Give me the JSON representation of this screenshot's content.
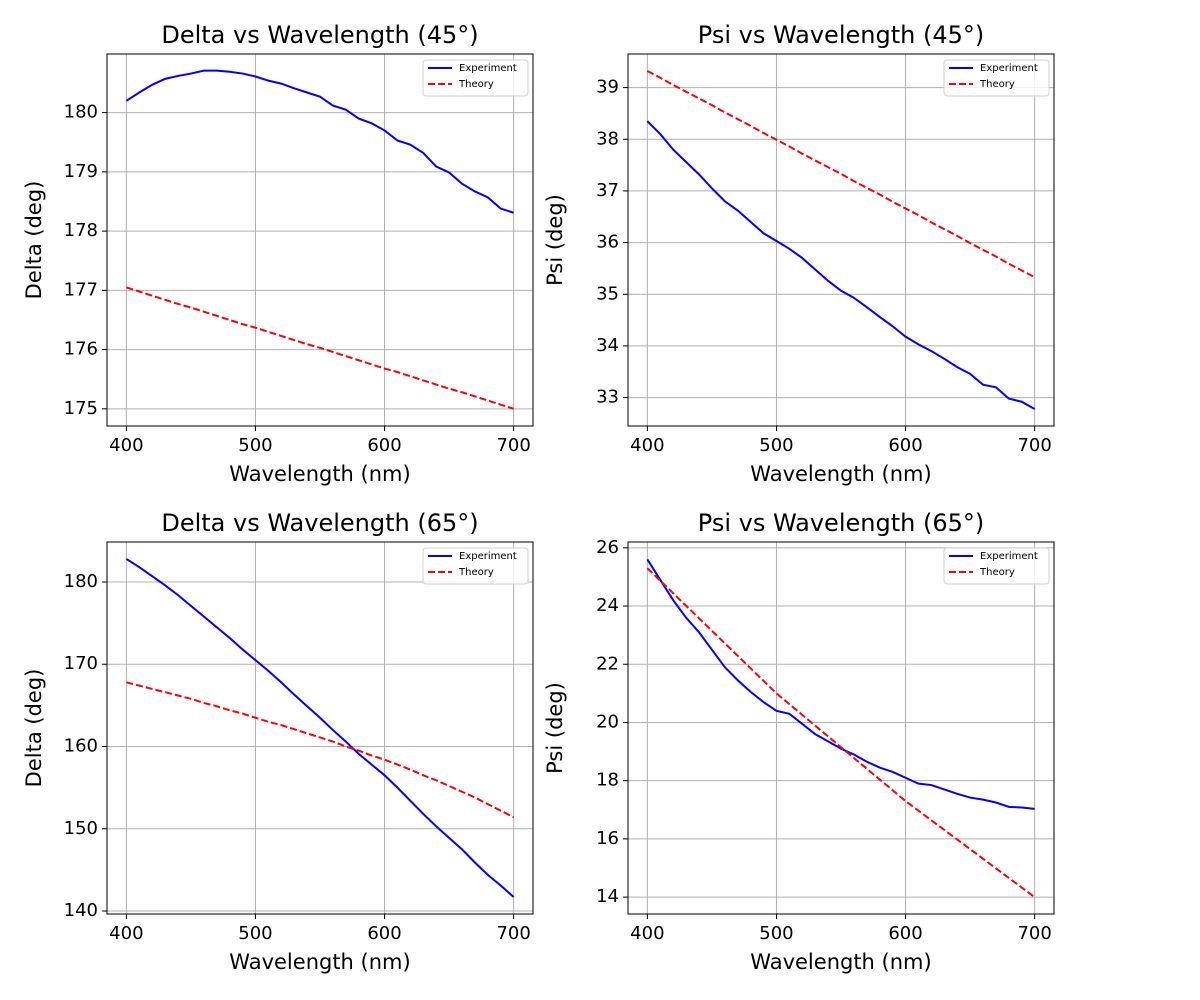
{
  "chart_data": [
    {
      "type": "line",
      "title": "Delta vs Wavelength (45°)",
      "x_label": "Wavelength (nm)",
      "y_label": "Delta (deg)",
      "x": [
        400,
        410,
        420,
        430,
        440,
        450,
        460,
        470,
        480,
        490,
        500,
        510,
        520,
        530,
        540,
        550,
        560,
        570,
        580,
        590,
        600,
        610,
        620,
        630,
        640,
        650,
        660,
        670,
        680,
        690,
        700
      ],
      "series": [
        {
          "name": "Experiment",
          "color": "#0000ff",
          "linestyle": "solid",
          "values": [
            180.2,
            180.34,
            180.47,
            180.57,
            180.62,
            180.66,
            180.71,
            180.71,
            180.69,
            180.66,
            180.61,
            180.54,
            180.49,
            180.41,
            180.34,
            180.27,
            180.12,
            180.05,
            179.9,
            179.82,
            179.7,
            179.53,
            179.46,
            179.32,
            179.09,
            178.99,
            178.8,
            178.67,
            178.57,
            178.38,
            178.31
          ]
        },
        {
          "name": "Theory",
          "color": "#ff0000",
          "linestyle": "dashed",
          "values": [
            177.05,
            176.98,
            176.91,
            176.84,
            176.77,
            176.71,
            176.64,
            176.57,
            176.5,
            176.43,
            176.37,
            176.3,
            176.23,
            176.16,
            176.09,
            176.03,
            175.96,
            175.89,
            175.82,
            175.75,
            175.68,
            175.62,
            175.55,
            175.48,
            175.41,
            175.34,
            175.28,
            175.21,
            175.14,
            175.07,
            175.0
          ]
        }
      ],
      "xlim": [
        385,
        715
      ],
      "ylim": [
        174.71,
        180.99
      ],
      "xticks": [
        400,
        500,
        600,
        700
      ],
      "yticks": [
        175,
        176,
        177,
        178,
        179,
        180
      ],
      "grid": true,
      "legend": "upper right"
    },
    {
      "type": "line",
      "title": "Psi vs Wavelength (45°)",
      "x_label": "Wavelength (nm)",
      "y_label": "Psi (deg)",
      "x": [
        400,
        410,
        420,
        430,
        440,
        450,
        460,
        470,
        480,
        490,
        500,
        510,
        520,
        530,
        540,
        550,
        560,
        570,
        580,
        590,
        600,
        610,
        620,
        630,
        640,
        650,
        660,
        670,
        680,
        690,
        700
      ],
      "series": [
        {
          "name": "Experiment",
          "color": "#0000ff",
          "linestyle": "solid",
          "values": [
            38.35,
            38.1,
            37.8,
            37.56,
            37.32,
            37.05,
            36.8,
            36.62,
            36.4,
            36.18,
            36.03,
            35.88,
            35.7,
            35.48,
            35.26,
            35.07,
            34.93,
            34.75,
            34.56,
            34.38,
            34.18,
            34.03,
            33.9,
            33.75,
            33.59,
            33.46,
            33.25,
            33.2,
            32.98,
            32.92,
            32.78
          ]
        },
        {
          "name": "Theory",
          "color": "#ff0000",
          "linestyle": "dashed",
          "values": [
            39.32,
            39.19,
            39.05,
            38.92,
            38.79,
            38.66,
            38.52,
            38.39,
            38.26,
            38.12,
            37.99,
            37.86,
            37.72,
            37.59,
            37.46,
            37.33,
            37.19,
            37.06,
            36.93,
            36.79,
            36.66,
            36.53,
            36.39,
            36.26,
            36.13,
            35.99,
            35.86,
            35.73,
            35.59,
            35.46,
            35.33
          ]
        }
      ],
      "xlim": [
        385,
        715
      ],
      "ylim": [
        32.45,
        39.65
      ],
      "xticks": [
        400,
        500,
        600,
        700
      ],
      "yticks": [
        33,
        34,
        35,
        36,
        37,
        38,
        39
      ],
      "grid": true,
      "legend": "upper right"
    },
    {
      "type": "line",
      "title": "Delta vs Wavelength (65°)",
      "x_label": "Wavelength (nm)",
      "y_label": "Delta (deg)",
      "x": [
        400,
        410,
        420,
        430,
        440,
        450,
        460,
        470,
        480,
        490,
        500,
        510,
        520,
        530,
        540,
        550,
        560,
        570,
        580,
        590,
        600,
        610,
        620,
        630,
        640,
        650,
        660,
        670,
        680,
        690,
        700
      ],
      "series": [
        {
          "name": "Experiment",
          "color": "#0000ff",
          "linestyle": "solid",
          "values": [
            182.8,
            181.8,
            180.7,
            179.6,
            178.4,
            177.1,
            175.8,
            174.5,
            173.2,
            171.8,
            170.5,
            169.2,
            167.8,
            166.3,
            164.9,
            163.5,
            162.0,
            160.6,
            159.1,
            157.8,
            156.5,
            155.0,
            153.4,
            151.8,
            150.3,
            148.9,
            147.5,
            145.9,
            144.4,
            143.1,
            141.7
          ]
        },
        {
          "name": "Theory",
          "color": "#ff0000",
          "linestyle": "dashed",
          "values": [
            167.8,
            167.4,
            167.0,
            166.6,
            166.2,
            165.8,
            165.3,
            164.9,
            164.4,
            164.0,
            163.5,
            163.0,
            162.6,
            162.1,
            161.6,
            161.1,
            160.6,
            160.0,
            159.5,
            158.9,
            158.4,
            157.8,
            157.2,
            156.5,
            155.9,
            155.2,
            154.5,
            153.8,
            153.0,
            152.2,
            151.4
          ]
        }
      ],
      "xlim": [
        385,
        715
      ],
      "ylim": [
        139.64,
        184.86
      ],
      "xticks": [
        400,
        500,
        600,
        700
      ],
      "yticks": [
        140,
        150,
        160,
        170,
        180
      ],
      "grid": true,
      "legend": "upper right"
    },
    {
      "type": "line",
      "title": "Psi vs Wavelength (65°)",
      "x_label": "Wavelength (nm)",
      "y_label": "Psi (deg)",
      "x": [
        400,
        410,
        420,
        430,
        440,
        450,
        460,
        470,
        480,
        490,
        500,
        510,
        520,
        530,
        540,
        550,
        560,
        570,
        580,
        590,
        600,
        610,
        620,
        630,
        640,
        650,
        660,
        670,
        680,
        690,
        700
      ],
      "series": [
        {
          "name": "Experiment",
          "color": "#0000ff",
          "linestyle": "solid",
          "values": [
            25.6,
            24.9,
            24.2,
            23.6,
            23.1,
            22.5,
            21.9,
            21.45,
            21.05,
            20.7,
            20.4,
            20.3,
            19.95,
            19.6,
            19.35,
            19.1,
            18.9,
            18.65,
            18.45,
            18.3,
            18.1,
            17.9,
            17.85,
            17.7,
            17.55,
            17.42,
            17.35,
            17.25,
            17.1,
            17.08,
            17.03
          ]
        },
        {
          "name": "Theory",
          "color": "#ff0000",
          "linestyle": "dashed",
          "values": [
            25.3,
            24.87,
            24.44,
            24.01,
            23.58,
            23.15,
            22.72,
            22.29,
            21.86,
            21.43,
            21.0,
            20.63,
            20.26,
            19.89,
            19.52,
            19.15,
            18.78,
            18.41,
            18.04,
            17.67,
            17.3,
            16.97,
            16.64,
            16.31,
            15.98,
            15.65,
            15.32,
            14.99,
            14.66,
            14.33,
            14.0
          ]
        }
      ],
      "xlim": [
        385,
        715
      ],
      "ylim": [
        13.42,
        26.2
      ],
      "xticks": [
        400,
        500,
        600,
        700
      ],
      "yticks": [
        14,
        16,
        18,
        20,
        22,
        24,
        26
      ],
      "grid": true,
      "legend": "upper right"
    }
  ]
}
